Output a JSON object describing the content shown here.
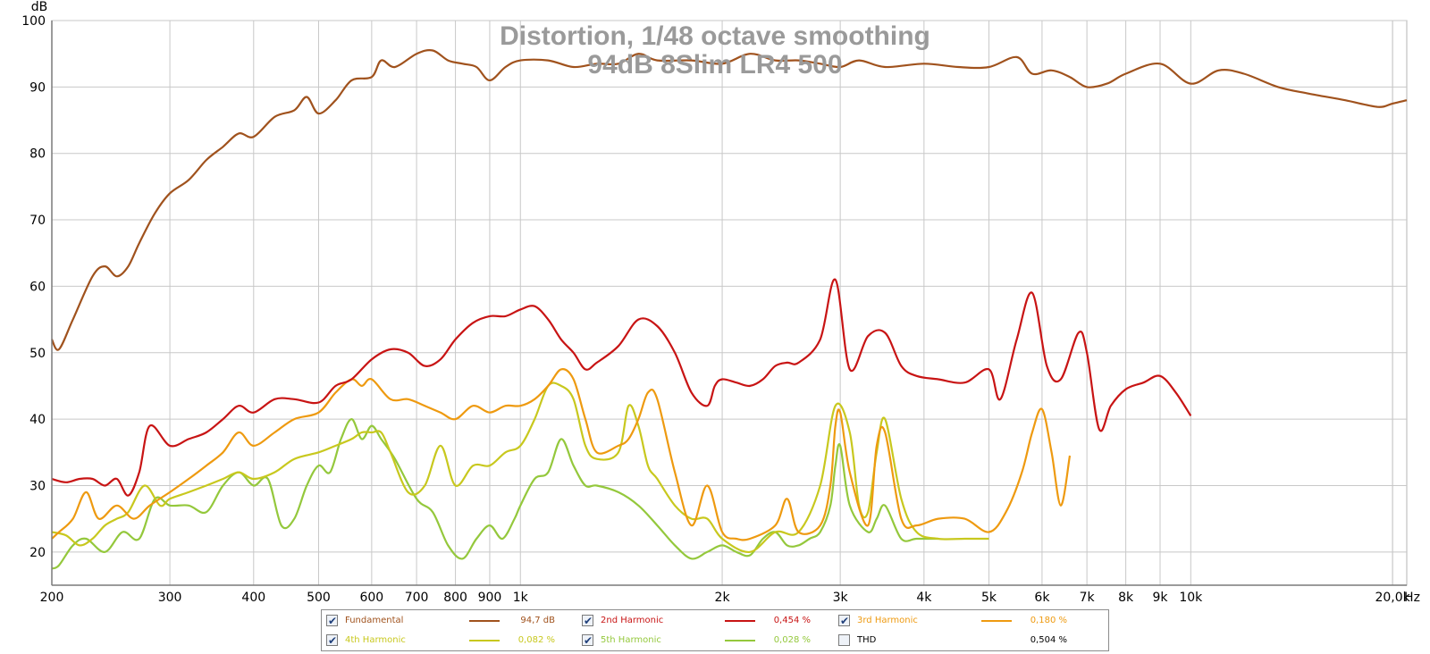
{
  "chart_data": {
    "type": "line",
    "title": "Distortion, 1/48 octave smoothing",
    "subtitle": "94dB 8Slim LR4 500",
    "ylabel": "dB",
    "xunit": "Hz",
    "x_scale": "log",
    "xlim": [
      200,
      21000
    ],
    "ylim": [
      15,
      100
    ],
    "grid": true,
    "legend_position": "bottom",
    "y_ticks": [
      20,
      30,
      40,
      50,
      60,
      70,
      80,
      90,
      100
    ],
    "y_tick_labels": [
      "20",
      "30",
      "40",
      "50",
      "60",
      "70",
      "80",
      "90",
      "100"
    ],
    "x_ticks": [
      200,
      300,
      400,
      500,
      600,
      700,
      800,
      900,
      1000,
      2000,
      3000,
      4000,
      5000,
      6000,
      7000,
      8000,
      9000,
      10000,
      20000
    ],
    "x_tick_labels": [
      "200",
      "300",
      "400",
      "500",
      "600",
      "700",
      "800",
      "900",
      "1k",
      "2k",
      "3k",
      "4k",
      "5k",
      "6k",
      "7k",
      "8k",
      "9k",
      "10k",
      "20,0k"
    ],
    "series": [
      {
        "name": "Fundamental",
        "value": "94,7 dB",
        "color": "#a0521d",
        "checked": true,
        "x": [
          200,
          205,
          215,
          230,
          240,
          250,
          260,
          270,
          285,
          300,
          320,
          340,
          360,
          380,
          400,
          430,
          460,
          480,
          500,
          530,
          560,
          600,
          620,
          650,
          700,
          740,
          780,
          820,
          860,
          900,
          950,
          1000,
          1100,
          1200,
          1300,
          1400,
          1500,
          1600,
          1800,
          2000,
          2200,
          2400,
          2600,
          2800,
          3000,
          3200,
          3500,
          4000,
          4500,
          5000,
          5500,
          5800,
          6200,
          6600,
          7000,
          7500,
          8000,
          9000,
          10000,
          11000,
          12000,
          13500,
          15000,
          17000,
          19000,
          20000,
          21000
        ],
        "y": [
          52,
          50.5,
          55,
          61.5,
          63,
          61.5,
          63,
          66.5,
          71,
          74,
          76,
          79,
          81,
          83,
          82.5,
          85.5,
          86.5,
          88.5,
          86,
          88,
          91,
          91.5,
          94,
          93,
          95,
          95.5,
          94,
          93.5,
          93,
          91,
          93,
          94,
          94,
          93,
          93.5,
          93.5,
          95,
          94,
          94,
          93.5,
          95,
          94,
          94,
          93.5,
          93,
          94,
          93,
          93.5,
          93,
          93,
          94.5,
          92,
          92.5,
          91.5,
          90,
          90.5,
          92,
          93.5,
          90.5,
          92.5,
          92,
          90,
          89,
          88,
          87,
          87.5,
          88
        ]
      },
      {
        "name": "2nd Harmonic",
        "value": "0,454 %",
        "color": "#c81414",
        "checked": true,
        "x": [
          200,
          210,
          220,
          230,
          240,
          250,
          260,
          270,
          280,
          300,
          320,
          340,
          360,
          380,
          400,
          430,
          460,
          500,
          530,
          560,
          600,
          640,
          680,
          720,
          760,
          800,
          850,
          900,
          950,
          1000,
          1050,
          1100,
          1150,
          1200,
          1250,
          1300,
          1400,
          1500,
          1600,
          1700,
          1800,
          1900,
          1950,
          2000,
          2100,
          2200,
          2300,
          2400,
          2500,
          2600,
          2800,
          2950,
          3100,
          3300,
          3500,
          3700,
          3900,
          4200,
          4600,
          5000,
          5200,
          5500,
          5800,
          6100,
          6400,
          6800,
          7000,
          7300,
          7600,
          8000,
          8500,
          9000,
          9500,
          10000
        ],
        "y": [
          31,
          30.5,
          31,
          31,
          30,
          31,
          28.5,
          32,
          39,
          36,
          37,
          38,
          40,
          42,
          41,
          43,
          43,
          42.5,
          45,
          46,
          49,
          50.5,
          50,
          48,
          49,
          52,
          54.5,
          55.5,
          55.5,
          56.5,
          57,
          55,
          52,
          50,
          47.5,
          48.5,
          51,
          55,
          54,
          50,
          44,
          42,
          45,
          46,
          45.5,
          45,
          46,
          48,
          48.5,
          48.5,
          52,
          61,
          47.5,
          52.5,
          53,
          48,
          46.5,
          46,
          45.5,
          47.5,
          43,
          52,
          59,
          48,
          46,
          53,
          50,
          38.5,
          42,
          44.5,
          45.5,
          46.5,
          44,
          40.5
        ]
      },
      {
        "name": "3rd Harmonic",
        "value": "0,180 %",
        "color": "#ee9a10",
        "checked": true,
        "x": [
          200,
          205,
          215,
          225,
          235,
          250,
          265,
          280,
          300,
          320,
          340,
          360,
          380,
          400,
          430,
          460,
          500,
          530,
          560,
          580,
          600,
          640,
          680,
          720,
          760,
          800,
          850,
          900,
          950,
          1000,
          1050,
          1100,
          1150,
          1200,
          1250,
          1300,
          1400,
          1450,
          1500,
          1550,
          1600,
          1700,
          1800,
          1900,
          2000,
          2100,
          2200,
          2400,
          2500,
          2600,
          2800,
          2900,
          2950,
          3000,
          3100,
          3300,
          3400,
          3500,
          3700,
          3900,
          4200,
          4600,
          5000,
          5300,
          5600,
          5800,
          6000,
          6200,
          6400,
          6600
        ],
        "y": [
          22,
          23,
          25,
          29,
          25,
          27,
          25,
          27,
          29,
          31,
          33,
          35,
          38,
          36,
          38,
          40,
          41,
          44,
          46,
          45,
          46,
          43,
          43,
          42,
          41,
          40,
          42,
          41,
          42,
          42,
          43,
          45,
          47.5,
          46,
          40,
          35,
          36,
          37,
          40,
          44,
          43,
          32,
          24,
          30,
          23,
          22,
          22,
          24,
          28,
          23,
          24,
          30,
          39,
          41,
          32,
          24,
          36,
          38,
          25,
          24,
          25,
          25,
          23,
          26,
          32,
          38,
          41.5,
          35,
          27,
          34.5
        ]
      },
      {
        "name": "4th Harmonic",
        "value": "0,082 %",
        "color": "#c8c81e",
        "checked": true,
        "x": [
          200,
          210,
          220,
          230,
          240,
          250,
          260,
          275,
          290,
          300,
          320,
          340,
          360,
          380,
          400,
          430,
          460,
          500,
          530,
          560,
          580,
          600,
          620,
          640,
          680,
          720,
          760,
          800,
          850,
          900,
          950,
          1000,
          1050,
          1100,
          1150,
          1200,
          1250,
          1300,
          1400,
          1450,
          1500,
          1550,
          1600,
          1700,
          1800,
          1900,
          2000,
          2200,
          2400,
          2600,
          2800,
          2950,
          3100,
          3200,
          3300,
          3400,
          3500,
          3700,
          3900,
          4200,
          4600,
          5000
        ],
        "y": [
          23,
          22.5,
          21,
          22,
          24,
          25,
          26,
          30,
          27,
          28,
          29,
          30,
          31,
          32,
          31,
          32,
          34,
          35,
          36,
          37,
          38,
          38,
          38,
          35,
          29,
          30,
          36,
          30,
          33,
          33,
          35,
          36,
          40,
          45,
          45,
          43,
          36,
          34,
          35,
          42,
          39,
          33,
          31,
          27,
          25,
          25,
          22,
          20,
          23,
          23,
          30,
          42,
          38,
          27,
          26,
          35,
          40,
          28,
          23,
          22,
          22,
          22
        ]
      },
      {
        "name": "5th Harmonic",
        "value": "0,028 %",
        "color": "#94c83c",
        "checked": true,
        "x": [
          200,
          205,
          215,
          225,
          240,
          255,
          270,
          285,
          300,
          320,
          340,
          360,
          380,
          400,
          420,
          440,
          460,
          480,
          500,
          520,
          540,
          560,
          580,
          600,
          620,
          650,
          700,
          740,
          780,
          820,
          860,
          900,
          940,
          980,
          1000,
          1050,
          1100,
          1150,
          1200,
          1250,
          1300,
          1400,
          1500,
          1600,
          1700,
          1800,
          1900,
          2000,
          2100,
          2200,
          2300,
          2400,
          2500,
          2600,
          2700,
          2800,
          2900,
          2950,
          3000,
          3100,
          3300,
          3400,
          3500,
          3700,
          3900,
          4200
        ],
        "y": [
          17.5,
          18,
          21,
          22,
          20,
          23,
          22,
          28,
          27,
          27,
          26,
          30,
          32,
          30,
          31,
          24,
          25,
          30,
          33,
          32,
          37,
          40,
          37,
          39,
          37,
          34,
          28,
          26,
          21,
          19,
          22,
          24,
          22,
          25,
          27,
          31,
          32,
          37,
          33,
          30,
          30,
          29,
          27,
          24,
          21,
          19,
          20,
          21,
          20,
          19.5,
          22,
          23,
          21,
          21,
          22,
          23,
          27,
          33,
          36,
          27,
          23,
          25,
          27,
          22,
          22,
          22
        ]
      }
    ],
    "extra_legend": {
      "name": "THD",
      "value": "0,504 %",
      "checked": false
    }
  }
}
